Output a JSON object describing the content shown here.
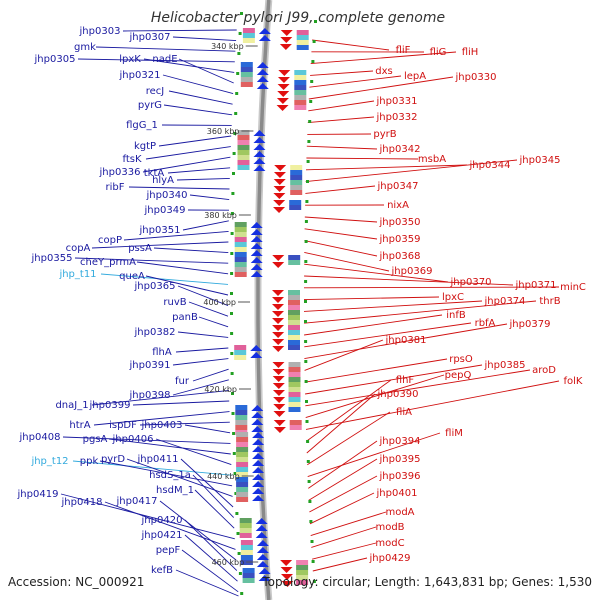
{
  "title": "Helicobacter pylori J99, complete genome",
  "footer": {
    "accession": "Accession: NC_000921",
    "stats": "Topology: circular; Length: 1,643,831 bp; Genes: 1,530"
  },
  "colors": {
    "left_strand": "#1a1aa0",
    "right_strand": "#d01010",
    "trna": "#33aadd",
    "backbone": "#999999"
  },
  "ticks": [
    {
      "label": "340 kbp"
    },
    {
      "label": "360 kbp"
    },
    {
      "label": "380 kbp"
    },
    {
      "label": "400 kbp"
    },
    {
      "label": "420 kbp"
    },
    {
      "label": "440 kbp"
    },
    {
      "label": "460 kbp"
    }
  ],
  "left_labels": [
    {
      "text": "jhp0303"
    },
    {
      "text": "jhp0307"
    },
    {
      "text": "gmk"
    },
    {
      "text": "jhp0305"
    },
    {
      "text": "lpxK"
    },
    {
      "text": "nadE"
    },
    {
      "text": "jhp0321"
    },
    {
      "text": "recJ"
    },
    {
      "text": "pyrG"
    },
    {
      "text": "flgG_1"
    },
    {
      "text": "kgtP"
    },
    {
      "text": "ftsK"
    },
    {
      "text": "jhp0336"
    },
    {
      "text": "tktA"
    },
    {
      "text": "hlyA"
    },
    {
      "text": "ribF"
    },
    {
      "text": "jhp0340"
    },
    {
      "text": "jhp0349"
    },
    {
      "text": "jhp0351"
    },
    {
      "text": "copP"
    },
    {
      "text": "copA"
    },
    {
      "text": "pssA"
    },
    {
      "text": "jhp0355"
    },
    {
      "text": "cheY_prmA"
    },
    {
      "text": "jhp_t11"
    },
    {
      "text": "queA"
    },
    {
      "text": "jhp0365"
    },
    {
      "text": "ruvB"
    },
    {
      "text": "panB"
    },
    {
      "text": "jhp0382"
    },
    {
      "text": "flhA"
    },
    {
      "text": "jhp0391"
    },
    {
      "text": "fur"
    },
    {
      "text": "jhp0398"
    },
    {
      "text": "dnaJ_1"
    },
    {
      "text": "jhp0399"
    },
    {
      "text": "htrA"
    },
    {
      "text": "ispDF"
    },
    {
      "text": "jhp0403"
    },
    {
      "text": "jhp0408"
    },
    {
      "text": "pgsA"
    },
    {
      "text": "jhp0406"
    },
    {
      "text": "jhp_t12"
    },
    {
      "text": "ppk"
    },
    {
      "text": "pyrD"
    },
    {
      "text": "jhp0411"
    },
    {
      "text": "hsdS_1a"
    },
    {
      "text": "hsdM_1"
    },
    {
      "text": "jhp0419"
    },
    {
      "text": "jhp0418"
    },
    {
      "text": "jhp0417"
    },
    {
      "text": "jhp0420"
    },
    {
      "text": "jhp0421"
    },
    {
      "text": "pepF"
    },
    {
      "text": "kefB"
    }
  ],
  "right_labels": [
    {
      "text": "fliF"
    },
    {
      "text": "fliG"
    },
    {
      "text": "fliH"
    },
    {
      "text": "dxs"
    },
    {
      "text": "lepA"
    },
    {
      "text": "jhp0330"
    },
    {
      "text": "jhp0331"
    },
    {
      "text": "jhp0332"
    },
    {
      "text": "pyrB"
    },
    {
      "text": "jhp0342"
    },
    {
      "text": "msbA"
    },
    {
      "text": "jhp0344"
    },
    {
      "text": "jhp0345"
    },
    {
      "text": "jhp0347"
    },
    {
      "text": "nixA"
    },
    {
      "text": "jhp0350"
    },
    {
      "text": "jhp0359"
    },
    {
      "text": "jhp0368"
    },
    {
      "text": "jhp0369"
    },
    {
      "text": "jhp0370"
    },
    {
      "text": "jhp0371"
    },
    {
      "text": "minC"
    },
    {
      "text": "lpxC"
    },
    {
      "text": "jhp0374"
    },
    {
      "text": "thrB"
    },
    {
      "text": "infB"
    },
    {
      "text": "rbfA"
    },
    {
      "text": "jhp0379"
    },
    {
      "text": "jhp0381"
    },
    {
      "text": "rpsO"
    },
    {
      "text": "jhp0385"
    },
    {
      "text": "aroD"
    },
    {
      "text": "pepQ"
    },
    {
      "text": "folK"
    },
    {
      "text": "flhF"
    },
    {
      "text": "jhp0390"
    },
    {
      "text": "fliA"
    },
    {
      "text": "fliM"
    },
    {
      "text": "jhp0394"
    },
    {
      "text": "jhp0395"
    },
    {
      "text": "jhp0396"
    },
    {
      "text": "jhp0401"
    },
    {
      "text": "modA"
    },
    {
      "text": "modB"
    },
    {
      "text": "modC"
    },
    {
      "text": "jhp0429"
    }
  ]
}
